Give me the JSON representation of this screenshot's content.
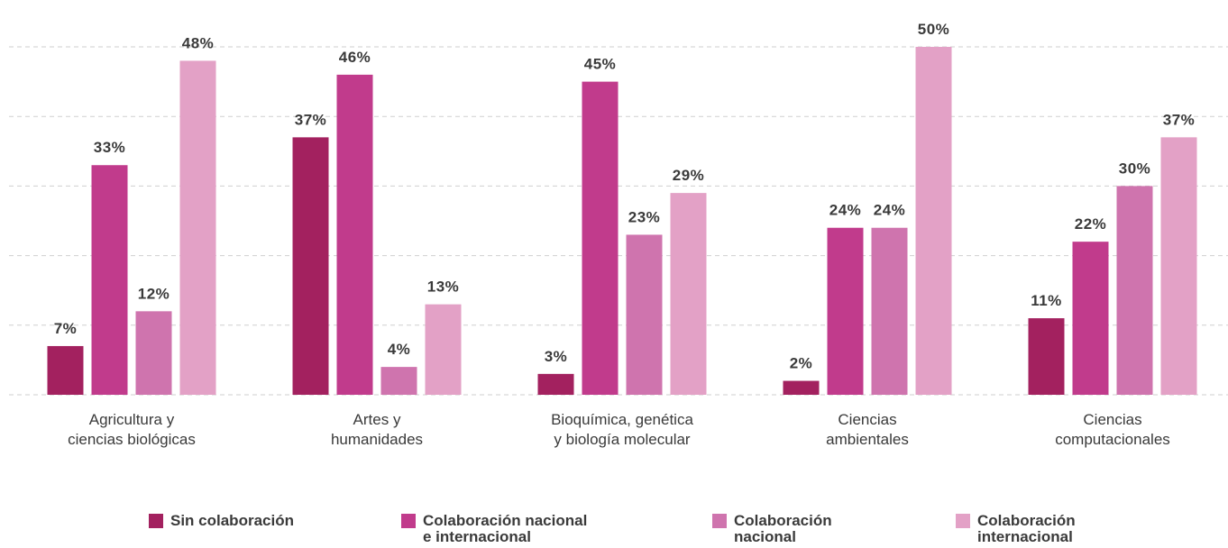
{
  "chart_data": {
    "type": "bar",
    "categories": [
      "Agricultura y\nciencias biológicas",
      "Artes y\nhumanidades",
      "Bioquímica, genética\ny biología molecular",
      "Ciencias\nambientales",
      "Ciencias\ncomputacionales"
    ],
    "series": [
      {
        "name": "Sin colaboración",
        "color": "#a3215f",
        "values": [
          7,
          37,
          3,
          2,
          11
        ],
        "value_labels": [
          "7%",
          "37%",
          "3%",
          "2%",
          "11%"
        ]
      },
      {
        "name": "Colaboración nacional\ne internacional",
        "color": "#c13b8c",
        "values": [
          33,
          46,
          45,
          24,
          22
        ],
        "value_labels": [
          "33%",
          "46%",
          "45%",
          "24%",
          "22%"
        ]
      },
      {
        "name": "Colaboración\nnacional",
        "color": "#cf74ae",
        "values": [
          12,
          4,
          23,
          24,
          30
        ],
        "value_labels": [
          "12%",
          "4%",
          "23%",
          "24%",
          "30%"
        ]
      },
      {
        "name": "Colaboración\ninternacional",
        "color": "#e3a1c6",
        "values": [
          48,
          13,
          29,
          50,
          37
        ],
        "value_labels": [
          "48%",
          "13%",
          "29%",
          "50%",
          "37%"
        ]
      }
    ],
    "ylim": [
      0,
      50
    ],
    "yticks": [
      0,
      10,
      20,
      30,
      40,
      50
    ],
    "grid": true,
    "legend": "bottom"
  }
}
